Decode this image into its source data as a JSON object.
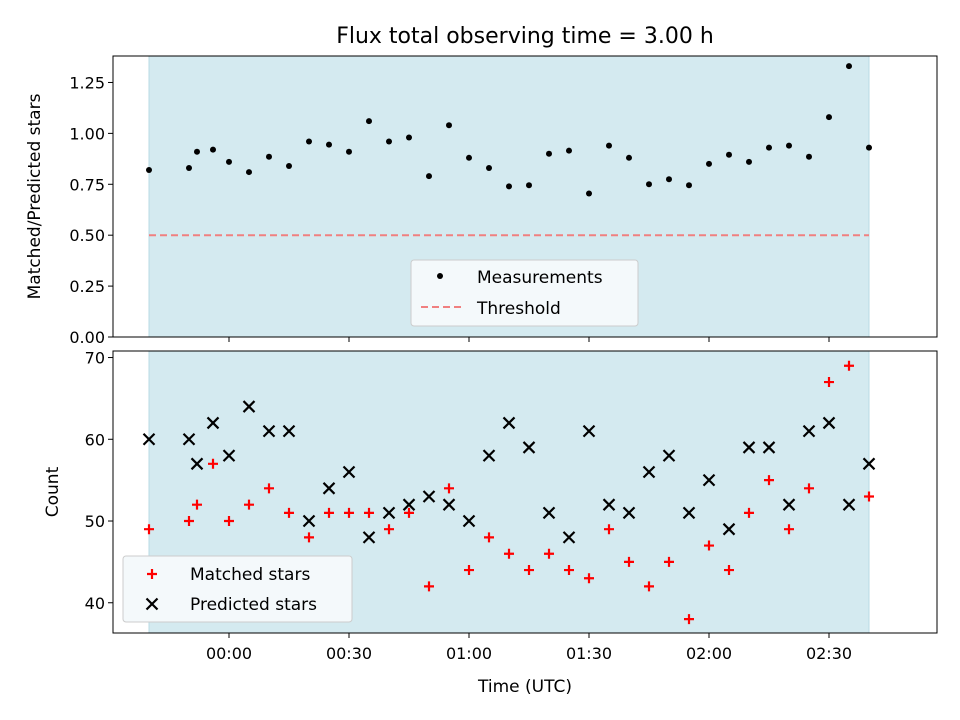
{
  "title": "Flux total observing time = 3.00 h",
  "chart_data": [
    {
      "type": "scatter",
      "ylabel": "Matched/Predicted stars",
      "xlabel": "",
      "ylim": [
        0,
        1.38
      ],
      "yticks": [
        0.0,
        0.25,
        0.5,
        0.75,
        1.0,
        1.25
      ],
      "ytick_labels": [
        "0.00",
        "0.25",
        "0.50",
        "0.75",
        "1.00",
        "1.25"
      ],
      "threshold": 0.5,
      "legend": {
        "position": "lower-center",
        "entries": [
          "Measurements",
          "Threshold"
        ]
      },
      "series": [
        {
          "name": "Measurements",
          "x": [
            -20,
            -10,
            -8,
            -4,
            0,
            5,
            10,
            15,
            20,
            25,
            30,
            35,
            40,
            45,
            50,
            55,
            60,
            65,
            70,
            75,
            80,
            85,
            90,
            95,
            100,
            105,
            110,
            115,
            120,
            125,
            130,
            135,
            140,
            145,
            150,
            155,
            160
          ],
          "y": [
            0.82,
            0.83,
            0.91,
            0.92,
            0.86,
            0.81,
            0.885,
            0.84,
            0.96,
            0.945,
            0.91,
            1.06,
            0.96,
            0.98,
            0.79,
            1.04,
            0.88,
            0.83,
            0.74,
            0.745,
            0.9,
            0.915,
            0.705,
            0.94,
            0.88,
            0.75,
            0.775,
            0.745,
            0.85,
            0.895,
            0.86,
            0.93,
            0.94,
            0.885,
            1.08,
            1.33,
            0.93
          ]
        }
      ]
    },
    {
      "type": "scatter",
      "ylabel": "Count",
      "xlabel": "Time (UTC)",
      "ylim": [
        36.3,
        70.8
      ],
      "yticks": [
        40,
        50,
        60,
        70
      ],
      "ytick_labels": [
        "40",
        "50",
        "60",
        "70"
      ],
      "xticks": [
        0,
        30,
        60,
        90,
        120,
        150
      ],
      "xtick_labels": [
        "00:00",
        "00:30",
        "01:00",
        "01:30",
        "02:00",
        "02:30"
      ],
      "legend": {
        "position": "lower-left",
        "entries": [
          "Matched stars",
          "Predicted stars"
        ]
      },
      "series": [
        {
          "name": "Matched stars",
          "x": [
            -20,
            -10,
            -8,
            -4,
            0,
            5,
            10,
            15,
            20,
            25,
            30,
            35,
            40,
            45,
            50,
            55,
            60,
            65,
            70,
            75,
            80,
            85,
            90,
            95,
            100,
            105,
            110,
            115,
            120,
            125,
            130,
            135,
            140,
            145,
            150,
            155,
            160
          ],
          "y": [
            49,
            50,
            52,
            57,
            50,
            52,
            54,
            51,
            48,
            51,
            51,
            51,
            49,
            51,
            42,
            54,
            44,
            48,
            46,
            44,
            46,
            44,
            43,
            49,
            45,
            42,
            45,
            38,
            47,
            44,
            51,
            55,
            49,
            54,
            67,
            69,
            53
          ]
        },
        {
          "name": "Predicted stars",
          "x": [
            -20,
            -10,
            -8,
            -4,
            0,
            5,
            10,
            15,
            20,
            25,
            30,
            35,
            40,
            45,
            50,
            55,
            60,
            65,
            70,
            75,
            80,
            85,
            90,
            95,
            100,
            105,
            110,
            115,
            120,
            125,
            130,
            135,
            140,
            145,
            150,
            155,
            160
          ],
          "y": [
            60,
            60,
            57,
            62,
            58,
            64,
            61,
            61,
            50,
            54,
            56,
            48,
            51,
            52,
            53,
            52,
            50,
            58,
            62,
            59,
            51,
            48,
            61,
            52,
            51,
            56,
            58,
            51,
            55,
            49,
            59,
            59,
            52,
            61,
            62,
            52,
            57
          ]
        }
      ]
    }
  ],
  "colors": {
    "shade": "#d4eaf0",
    "shade_edge": "#b8dbe5",
    "measurements": "#000000",
    "threshold": "#f08080",
    "matched": "#ff0000",
    "predicted": "#000000",
    "legend_bg": "#f4f9fb"
  }
}
